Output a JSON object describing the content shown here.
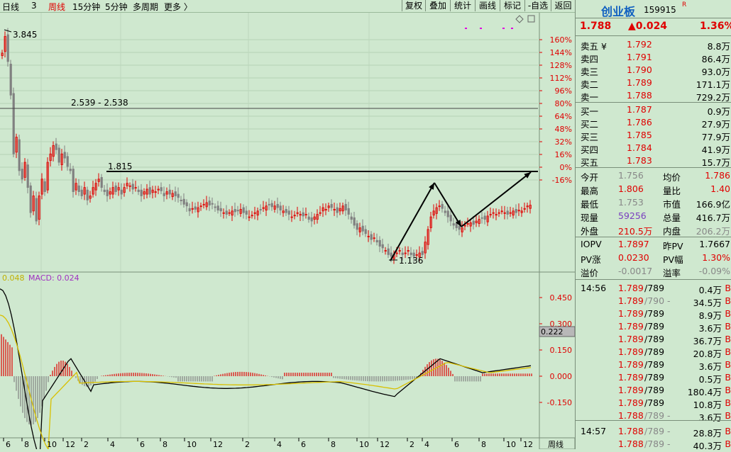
{
  "topbar": {
    "tabs": [
      "日线",
      "3",
      "周线",
      "15分钟",
      "5分钟",
      "多周期",
      "更多 〉"
    ],
    "buttons": [
      "复权",
      "叠加",
      "统计",
      "画线",
      "标记",
      "-自选",
      "返回"
    ]
  },
  "price_chart": {
    "high_label": "3.845",
    "low_label": "1.136",
    "range_label": "2.539 - 2.538",
    "support_label": "1.815",
    "pct_ticks": [
      "160%",
      "144%",
      "128%",
      "112%",
      "96%",
      "80%",
      "64%",
      "48%",
      "32%",
      "16%",
      "0%",
      "-16%"
    ]
  },
  "macd_panel": {
    "dif_value": "0.048",
    "macd_label": "MACD: 0.024",
    "ticks": [
      "0.450",
      "0.300",
      "0.150",
      "0.000",
      "-0.150"
    ],
    "current_value": "0.222"
  },
  "x_axis": {
    "labels": [
      "6",
      "8",
      "10",
      "12",
      "2",
      "4",
      "6",
      "8",
      "10",
      "12",
      "2",
      "4",
      "6",
      "8",
      "10",
      "12",
      "2",
      "4",
      "6",
      "8",
      "10",
      "12"
    ],
    "period_label": "周线"
  },
  "colors": {
    "up": "#e00000",
    "down": "#808080",
    "bg": "#cfe8cf",
    "dif": "#000000",
    "dea": "#d8c000",
    "macd_text": "#a030c0"
  },
  "quote": {
    "name": "创业板",
    "code": "159915",
    "flag": "R",
    "price": "1.788",
    "change": "▲0.024",
    "change_pct": "1.36%",
    "sell": [
      {
        "label": "卖五 ¥",
        "price": "1.792",
        "vol": "8.8万"
      },
      {
        "label": "卖四",
        "price": "1.791",
        "vol": "86.4万"
      },
      {
        "label": "卖三",
        "price": "1.790",
        "vol": "93.0万"
      },
      {
        "label": "卖二",
        "price": "1.789",
        "vol": "171.1万"
      },
      {
        "label": "卖一",
        "price": "1.788",
        "vol": "729.2万"
      }
    ],
    "buy": [
      {
        "label": "买一",
        "price": "1.787",
        "vol": "0.9万"
      },
      {
        "label": "买二",
        "price": "1.786",
        "vol": "27.9万"
      },
      {
        "label": "买三",
        "price": "1.785",
        "vol": "77.9万"
      },
      {
        "label": "买四",
        "price": "1.784",
        "vol": "41.9万"
      },
      {
        "label": "买五",
        "price": "1.783",
        "vol": "15.7万"
      }
    ],
    "stats": [
      {
        "l1": "今开",
        "v1": "1.756",
        "l2": "均价",
        "v2": "1.786"
      },
      {
        "l1": "最高",
        "v1": "1.806",
        "l2": "量比",
        "v2": "1.40"
      },
      {
        "l1": "最低",
        "v1": "1.753",
        "l2": "市值",
        "v2": "166.9亿"
      },
      {
        "l1": "现量",
        "v1": "59256",
        "l2": "总量",
        "v2": "416.7万"
      },
      {
        "l1": "外盘",
        "v1": "210.5万",
        "l2": "内盘",
        "v2": "206.2万"
      }
    ],
    "iopv": [
      {
        "l1": "IOPV",
        "v1": "1.7897",
        "l2": "昨PV",
        "v2": "1.7667"
      },
      {
        "l1": "PV涨",
        "v1": "0.0230",
        "l2": "PV幅",
        "v2": "1.30%"
      },
      {
        "l1": "溢价",
        "v1": "-0.0017",
        "l2": "溢率",
        "v2": "-0.09%"
      }
    ]
  },
  "ticks": [
    {
      "time": "14:56",
      "price": "1.789",
      "sep": "/789",
      "vol": "0.4万",
      "flag": "B"
    },
    {
      "time": "",
      "price": "1.789",
      "sep": "/790 -",
      "vol": "34.5万",
      "flag": "B"
    },
    {
      "time": "",
      "price": "1.789",
      "sep": "/789",
      "vol": "8.9万",
      "flag": "B"
    },
    {
      "time": "",
      "price": "1.789",
      "sep": "/789",
      "vol": "3.6万",
      "flag": "B"
    },
    {
      "time": "",
      "price": "1.789",
      "sep": "/789",
      "vol": "36.7万",
      "flag": "B"
    },
    {
      "time": "",
      "price": "1.789",
      "sep": "/789",
      "vol": "20.8万",
      "flag": "B"
    },
    {
      "time": "",
      "price": "1.789",
      "sep": "/789",
      "vol": "3.6万",
      "flag": "B"
    },
    {
      "time": "",
      "price": "1.789",
      "sep": "/789",
      "vol": "0.5万",
      "flag": "B"
    },
    {
      "time": "",
      "price": "1.789",
      "sep": "/789",
      "vol": "180.4万",
      "flag": "B"
    },
    {
      "time": "",
      "price": "1.789",
      "sep": "/789",
      "vol": "10.8万",
      "flag": "B"
    },
    {
      "time": "",
      "price": "1.788",
      "sep": "/789 -",
      "vol": "3.6万",
      "flag": "B"
    },
    {
      "time": "14:57",
      "price": "1.788",
      "sep": "/789 -",
      "vol": "28.8万",
      "flag": "B"
    },
    {
      "time": "",
      "price": "1.788",
      "sep": "/789 -",
      "vol": "40.3万",
      "flag": "B"
    }
  ]
}
